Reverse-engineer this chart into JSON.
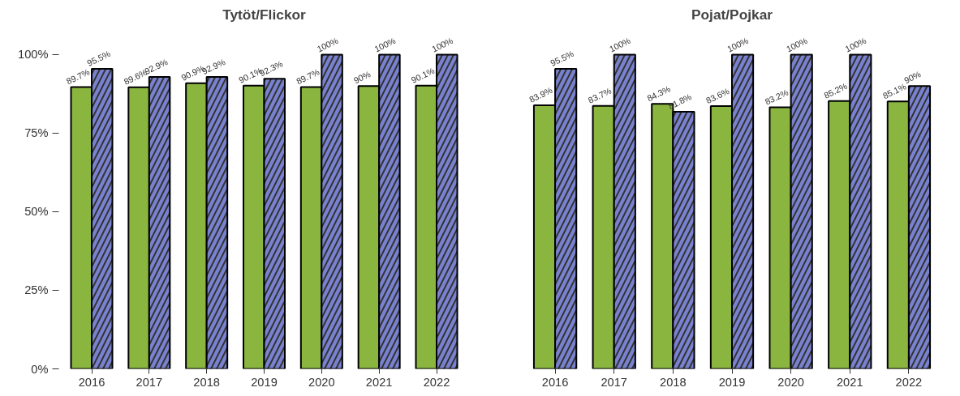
{
  "chart_data": [
    {
      "type": "bar",
      "title": "Tytöt/Flickor",
      "categories": [
        "2016",
        "2017",
        "2018",
        "2019",
        "2020",
        "2021",
        "2022"
      ],
      "ylim": [
        0,
        100
      ],
      "yticks": [
        {
          "value": 0,
          "label": "0%"
        },
        {
          "value": 25,
          "label": "25%"
        },
        {
          "value": 50,
          "label": "50%"
        },
        {
          "value": 75,
          "label": "75%"
        },
        {
          "value": 100,
          "label": "100%"
        }
      ],
      "grid": false,
      "series": [
        {
          "color": "#8ab640",
          "values": [
            89.7,
            89.6,
            90.9,
            90.1,
            89.7,
            90,
            90.1
          ],
          "value_labels": [
            "89.7%",
            "89.6%",
            "90.9%",
            "90.1%",
            "89.7%",
            "90%",
            "90.1%"
          ]
        },
        {
          "color": "#7982d0",
          "values": [
            95.5,
            92.9,
            92.9,
            92.3,
            100,
            100,
            100
          ],
          "value_labels": [
            "95.5%",
            "92.9%",
            "92.9%",
            "92.3%",
            "100%",
            "100%",
            "100%"
          ]
        }
      ]
    },
    {
      "type": "bar",
      "title": "Pojat/Pojkar",
      "categories": [
        "2016",
        "2017",
        "2018",
        "2019",
        "2020",
        "2021",
        "2022"
      ],
      "ylim": [
        0,
        100
      ],
      "tick_labels": "x",
      "grid": false,
      "series": [
        {
          "color": "#8ab640",
          "values": [
            83.9,
            83.7,
            84.3,
            83.6,
            83.2,
            85.2,
            85.1
          ],
          "value_labels": [
            "83.9%",
            "83.7%",
            "84.3%",
            "83.6%",
            "83.2%",
            "85.2%",
            "85.1%"
          ]
        },
        {
          "color": "#7982d0",
          "values": [
            95.5,
            100,
            81.8,
            100,
            100,
            100,
            90
          ],
          "value_labels": [
            "95.5%",
            "100%",
            "81.8%",
            "100%",
            "100%",
            "100%",
            "90%"
          ]
        }
      ]
    }
  ]
}
